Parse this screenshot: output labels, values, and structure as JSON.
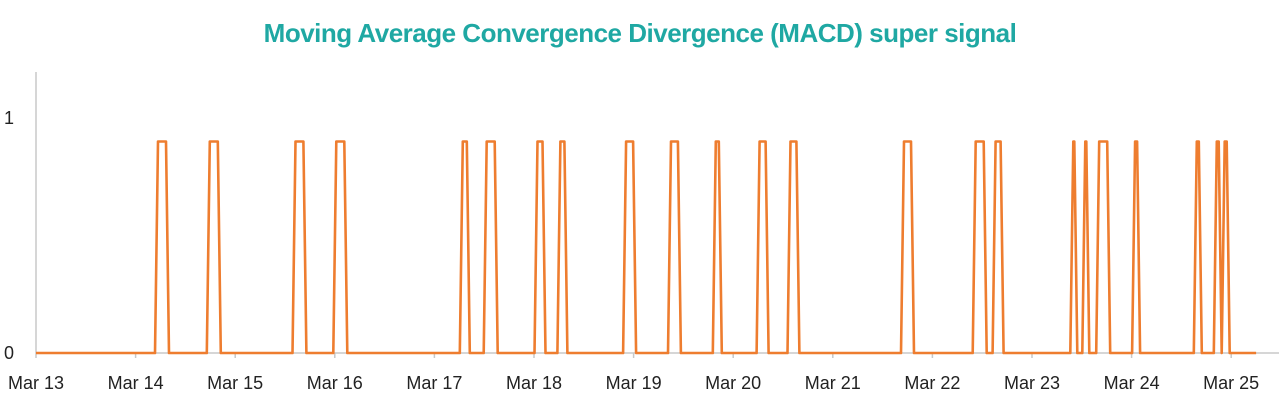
{
  "chart_data": {
    "type": "line",
    "title": "Moving Average Convergence Divergence (MACD) super signal",
    "xlabel": "",
    "ylabel": "",
    "x_tick_labels": [
      "Mar 13",
      "Mar 14",
      "Mar 15",
      "Mar 16",
      "Mar 17",
      "Mar 18",
      "Mar 19",
      "Mar 20",
      "Mar 21",
      "Mar 22",
      "Mar 23",
      "Mar 24",
      "Mar 25"
    ],
    "y_tick_labels": [
      "0",
      "1"
    ],
    "xlim": [
      0,
      12.5
    ],
    "ylim": [
      0,
      1
    ],
    "grid": false,
    "legend": "none",
    "series": [
      {
        "values_description": "pulses (signal = 0.9) over x intervals in days since Mar 13",
        "pulse_level": 0.9,
        "pulses": [
          [
            1.22,
            1.31
          ],
          [
            1.74,
            1.83
          ],
          [
            2.6,
            2.69
          ],
          [
            3.01,
            3.1
          ],
          [
            4.28,
            4.33
          ],
          [
            4.52,
            4.61
          ],
          [
            5.03,
            5.09
          ],
          [
            5.26,
            5.31
          ],
          [
            5.92,
            6.0
          ],
          [
            6.37,
            6.45
          ],
          [
            6.82,
            6.86
          ],
          [
            7.26,
            7.33
          ],
          [
            7.57,
            7.64
          ],
          [
            8.71,
            8.79
          ],
          [
            9.43,
            9.52
          ],
          [
            9.63,
            9.69
          ],
          [
            10.41,
            10.43
          ],
          [
            10.53,
            10.55
          ],
          [
            10.67,
            10.76
          ],
          [
            11.03,
            11.06
          ],
          [
            11.65,
            11.68
          ],
          [
            11.85,
            11.88
          ],
          [
            11.93,
            11.96
          ]
        ]
      }
    ]
  },
  "colors": {
    "title": "#1fa8a3",
    "series": "#ee7d2f",
    "axis": "#c8c8c8"
  }
}
